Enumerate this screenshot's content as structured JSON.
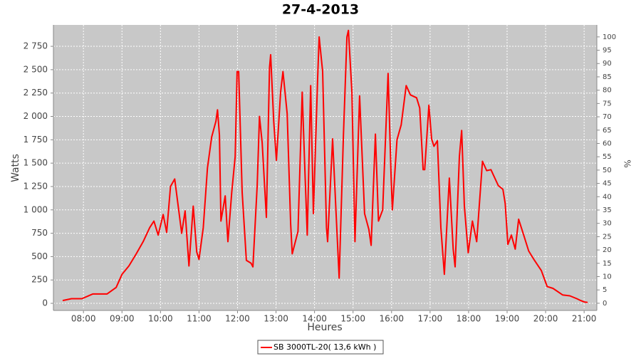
{
  "chart_data": {
    "type": "line",
    "title": "27-4-2013",
    "x_label": "Heures",
    "y_label": "Watts",
    "y2_label": "%",
    "x": [
      7.46,
      7.69,
      7.96,
      8.24,
      8.61,
      8.85,
      9.0,
      9.18,
      9.37,
      9.55,
      9.72,
      9.83,
      9.94,
      10.07,
      10.16,
      10.26,
      10.37,
      10.46,
      10.55,
      10.64,
      10.74,
      10.85,
      10.94,
      11.0,
      11.11,
      11.22,
      11.33,
      11.44,
      11.48,
      11.53,
      11.57,
      11.68,
      11.75,
      11.85,
      11.94,
      11.99,
      12.03,
      12.12,
      12.23,
      12.35,
      12.4,
      12.51,
      12.57,
      12.64,
      12.75,
      12.83,
      12.86,
      12.94,
      13.01,
      13.12,
      13.18,
      13.29,
      13.38,
      13.42,
      13.57,
      13.68,
      13.75,
      13.81,
      13.9,
      13.97,
      14.08,
      14.12,
      14.21,
      14.31,
      14.34,
      14.47,
      14.56,
      14.64,
      14.75,
      14.84,
      14.88,
      14.97,
      15.05,
      15.17,
      15.3,
      15.41,
      15.47,
      15.58,
      15.66,
      15.77,
      15.91,
      15.99,
      16.02,
      16.14,
      16.25,
      16.38,
      16.49,
      16.65,
      16.73,
      16.82,
      16.86,
      16.97,
      17.04,
      17.1,
      17.19,
      17.28,
      17.37,
      17.47,
      17.5,
      17.6,
      17.65,
      17.76,
      17.82,
      17.89,
      17.99,
      18.1,
      18.21,
      18.36,
      18.47,
      18.58,
      18.77,
      18.89,
      18.95,
      19.02,
      19.11,
      19.21,
      19.3,
      19.43,
      19.56,
      19.71,
      19.89,
      20.04,
      20.19,
      20.44,
      20.63,
      20.81,
      20.91,
      21.0,
      21.09
    ],
    "series": [
      {
        "name": "SB 3000TL-20( 13,6 kWh )",
        "color": "#ff0000",
        "values": [
          30,
          50,
          50,
          100,
          100,
          170,
          310,
          400,
          530,
          660,
          810,
          880,
          730,
          950,
          760,
          1250,
          1330,
          1040,
          750,
          990,
          400,
          1040,
          550,
          470,
          810,
          1450,
          1780,
          1950,
          2070,
          1800,
          880,
          1150,
          660,
          1190,
          1570,
          2480,
          2480,
          1190,
          460,
          430,
          390,
          1260,
          2000,
          1720,
          920,
          2520,
          2660,
          1950,
          1530,
          2260,
          2480,
          2030,
          850,
          530,
          770,
          2260,
          1420,
          730,
          2330,
          960,
          2410,
          2850,
          2480,
          810,
          660,
          1760,
          960,
          270,
          1800,
          2850,
          2920,
          2260,
          660,
          2220,
          960,
          790,
          620,
          1810,
          880,
          1000,
          2460,
          1340,
          1000,
          1750,
          1910,
          2330,
          2230,
          2200,
          2090,
          1430,
          1430,
          2120,
          1760,
          1680,
          1740,
          810,
          310,
          1110,
          1340,
          580,
          390,
          1570,
          1850,
          1040,
          540,
          880,
          660,
          1520,
          1420,
          1430,
          1260,
          1220,
          1070,
          630,
          730,
          580,
          900,
          730,
          560,
          460,
          350,
          180,
          160,
          90,
          80,
          50,
          30,
          15,
          10
        ]
      }
    ],
    "xlim": [
      7.22,
      21.33
    ],
    "xticks": [
      {
        "value": 8,
        "label": "08:00"
      },
      {
        "value": 9,
        "label": "09:00"
      },
      {
        "value": 10,
        "label": "10:00"
      },
      {
        "value": 11,
        "label": "11:00"
      },
      {
        "value": 12,
        "label": "12:00"
      },
      {
        "value": 13,
        "label": "13:00"
      },
      {
        "value": 14,
        "label": "14:00"
      },
      {
        "value": 15,
        "label": "15:00"
      },
      {
        "value": 16,
        "label": "16:00"
      },
      {
        "value": 17,
        "label": "17:00"
      },
      {
        "value": 18,
        "label": "18:00"
      },
      {
        "value": 19,
        "label": "19:00"
      },
      {
        "value": 20,
        "label": "20:00"
      },
      {
        "value": 21,
        "label": "21:00"
      }
    ],
    "ylim": [
      -76,
      2979
    ],
    "yticks": [
      0,
      250,
      500,
      750,
      {
        "value": 1000,
        "label": "1 000"
      },
      {
        "value": 1250,
        "label": "1 250"
      },
      {
        "value": 1500,
        "label": "1 500"
      },
      {
        "value": 1750,
        "label": "1 750"
      },
      {
        "value": 2000,
        "label": "2 000"
      },
      {
        "value": 2250,
        "label": "2 250"
      },
      {
        "value": 2500,
        "label": "2 500"
      },
      {
        "value": 2750,
        "label": "2 750"
      }
    ],
    "y2lim": [
      -2.7,
      104.5
    ],
    "y2ticks": [
      0,
      5,
      10,
      15,
      20,
      25,
      30,
      35,
      40,
      45,
      50,
      55,
      60,
      65,
      70,
      75,
      80,
      85,
      90,
      95,
      100
    ],
    "grid": true
  }
}
